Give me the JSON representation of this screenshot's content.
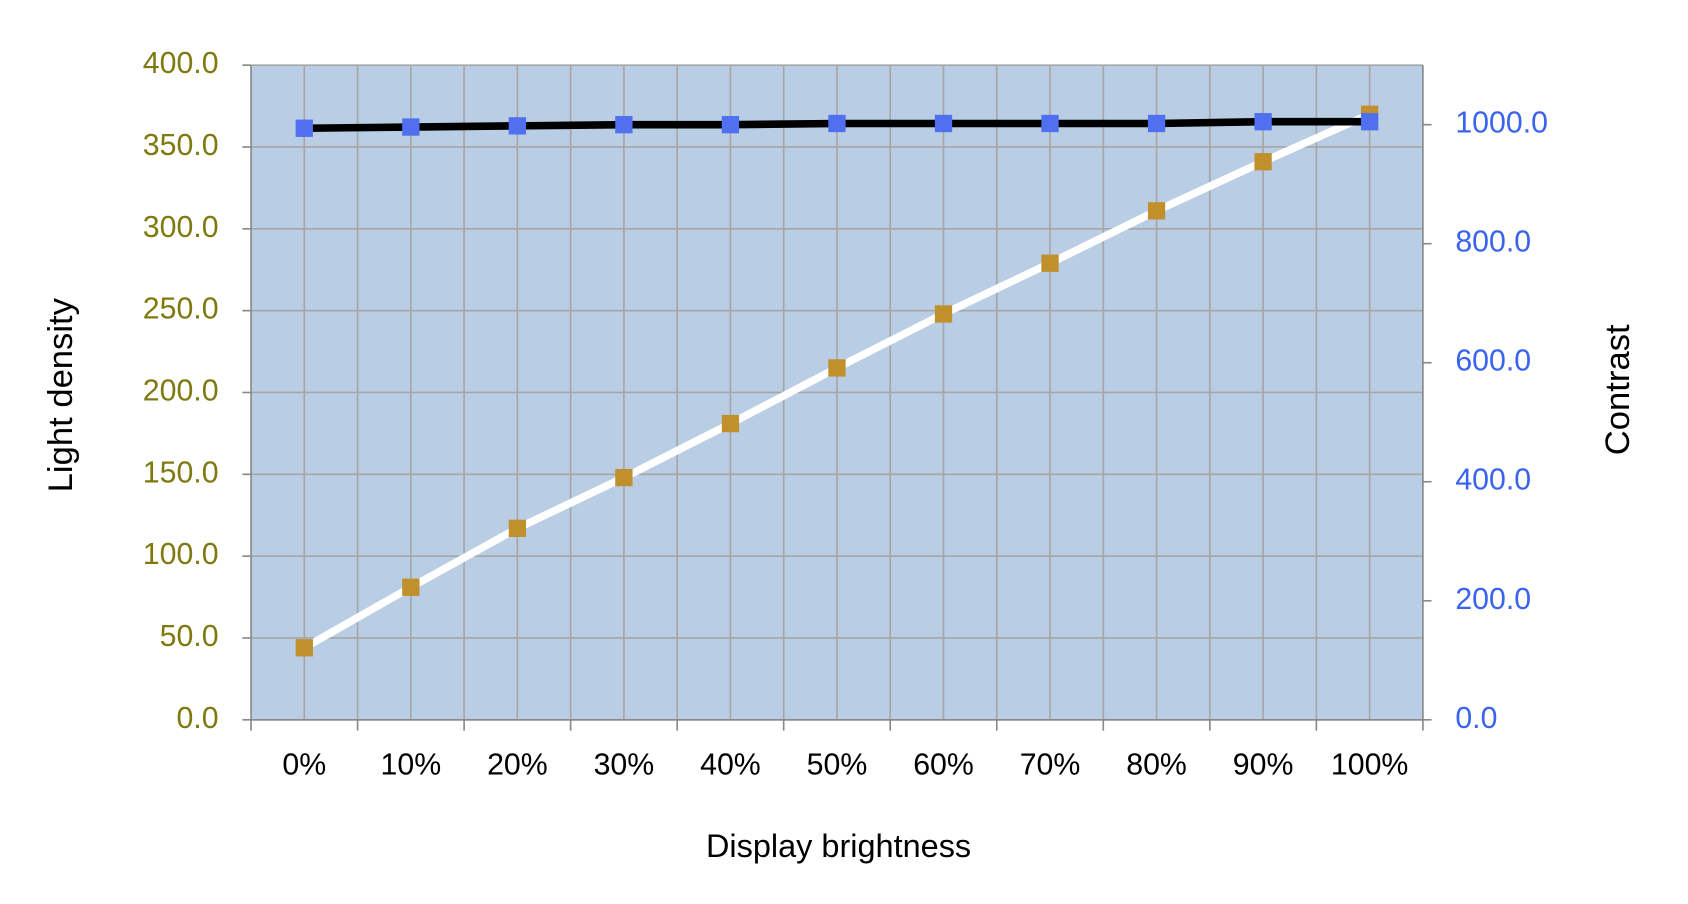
{
  "chart_data": {
    "type": "line",
    "x_label": "Display brightness",
    "y_label": "Light density",
    "y2_label": "Contrast",
    "categories": [
      "0%",
      "10%",
      "20%",
      "30%",
      "40%",
      "50%",
      "60%",
      "70%",
      "80%",
      "90%",
      "100%"
    ],
    "series": [
      {
        "color": "#ffffff",
        "marker_color": "#c0902c",
        "values": [
          44,
          81,
          117,
          148,
          181,
          215,
          248,
          279,
          311,
          341,
          370
        ]
      },
      {
        "color": "#000000",
        "marker_color": "#5070f0",
        "axis": "y2",
        "values": [
          994,
          996,
          998,
          1000,
          1000,
          1002,
          1002,
          1002,
          1002,
          1005,
          1005
        ]
      }
    ],
    "ylim": [
      0,
      400
    ],
    "yticks": [
      {
        "value": 0,
        "label": "0.0"
      },
      {
        "value": 50,
        "label": "50.0"
      },
      {
        "value": 100,
        "label": "100.0"
      },
      {
        "value": 150,
        "label": "150.0"
      },
      {
        "value": 200,
        "label": "200.0"
      },
      {
        "value": 250,
        "label": "250.0"
      },
      {
        "value": 300,
        "label": "300.0"
      },
      {
        "value": 350,
        "label": "350.0"
      },
      {
        "value": 400,
        "label": "400.0"
      }
    ],
    "y2lim": [
      0,
      1100
    ],
    "y2ticks": [
      {
        "value": 0,
        "label": "0.0"
      },
      {
        "value": 200,
        "label": "200.0"
      },
      {
        "value": 400,
        "label": "400.0"
      },
      {
        "value": 600,
        "label": "600.0"
      },
      {
        "value": 800,
        "label": "800.0"
      },
      {
        "value": 1000,
        "label": "1000.0"
      }
    ],
    "y_color": "#7f7a10",
    "y2_color": "#3a63f0",
    "plot_background": "#b9cde5",
    "grid": true
  }
}
